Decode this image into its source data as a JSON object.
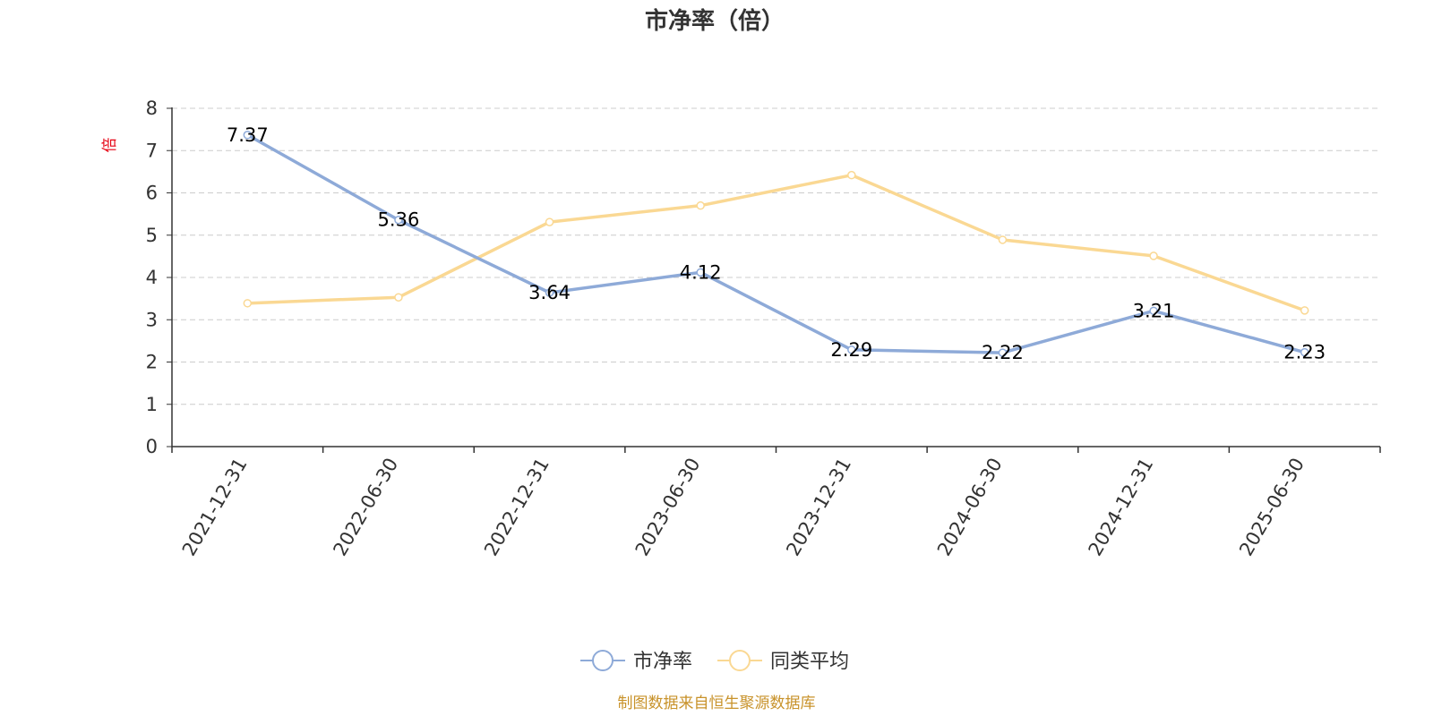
{
  "chart_data": {
    "type": "line",
    "title": "市净率（倍）",
    "ylabel": "倍",
    "xlabel": "",
    "categories": [
      "2021-12-31",
      "2022-06-30",
      "2022-12-31",
      "2023-06-30",
      "2023-12-31",
      "2024-06-30",
      "2024-12-31",
      "2025-06-30"
    ],
    "ylim": [
      0,
      8
    ],
    "yticks": [
      0,
      1,
      2,
      3,
      4,
      5,
      6,
      7,
      8
    ],
    "grid": true,
    "legend_position": "bottom",
    "series": [
      {
        "name": "市净率",
        "color": "#8eaad8",
        "values": [
          7.37,
          5.36,
          3.64,
          4.12,
          2.29,
          2.22,
          3.21,
          2.23
        ],
        "show_labels": true
      },
      {
        "name": "同类平均",
        "color": "#fad893",
        "values": [
          3.39,
          3.53,
          5.31,
          5.7,
          6.42,
          4.89,
          4.51,
          3.22
        ],
        "show_labels": false
      }
    ]
  },
  "source_note": "制图数据来自恒生聚源数据库",
  "colors": {
    "axis": "#333333",
    "grid": "#cccccc",
    "unit_label": "#e60012",
    "source_note": "#c8922a"
  }
}
